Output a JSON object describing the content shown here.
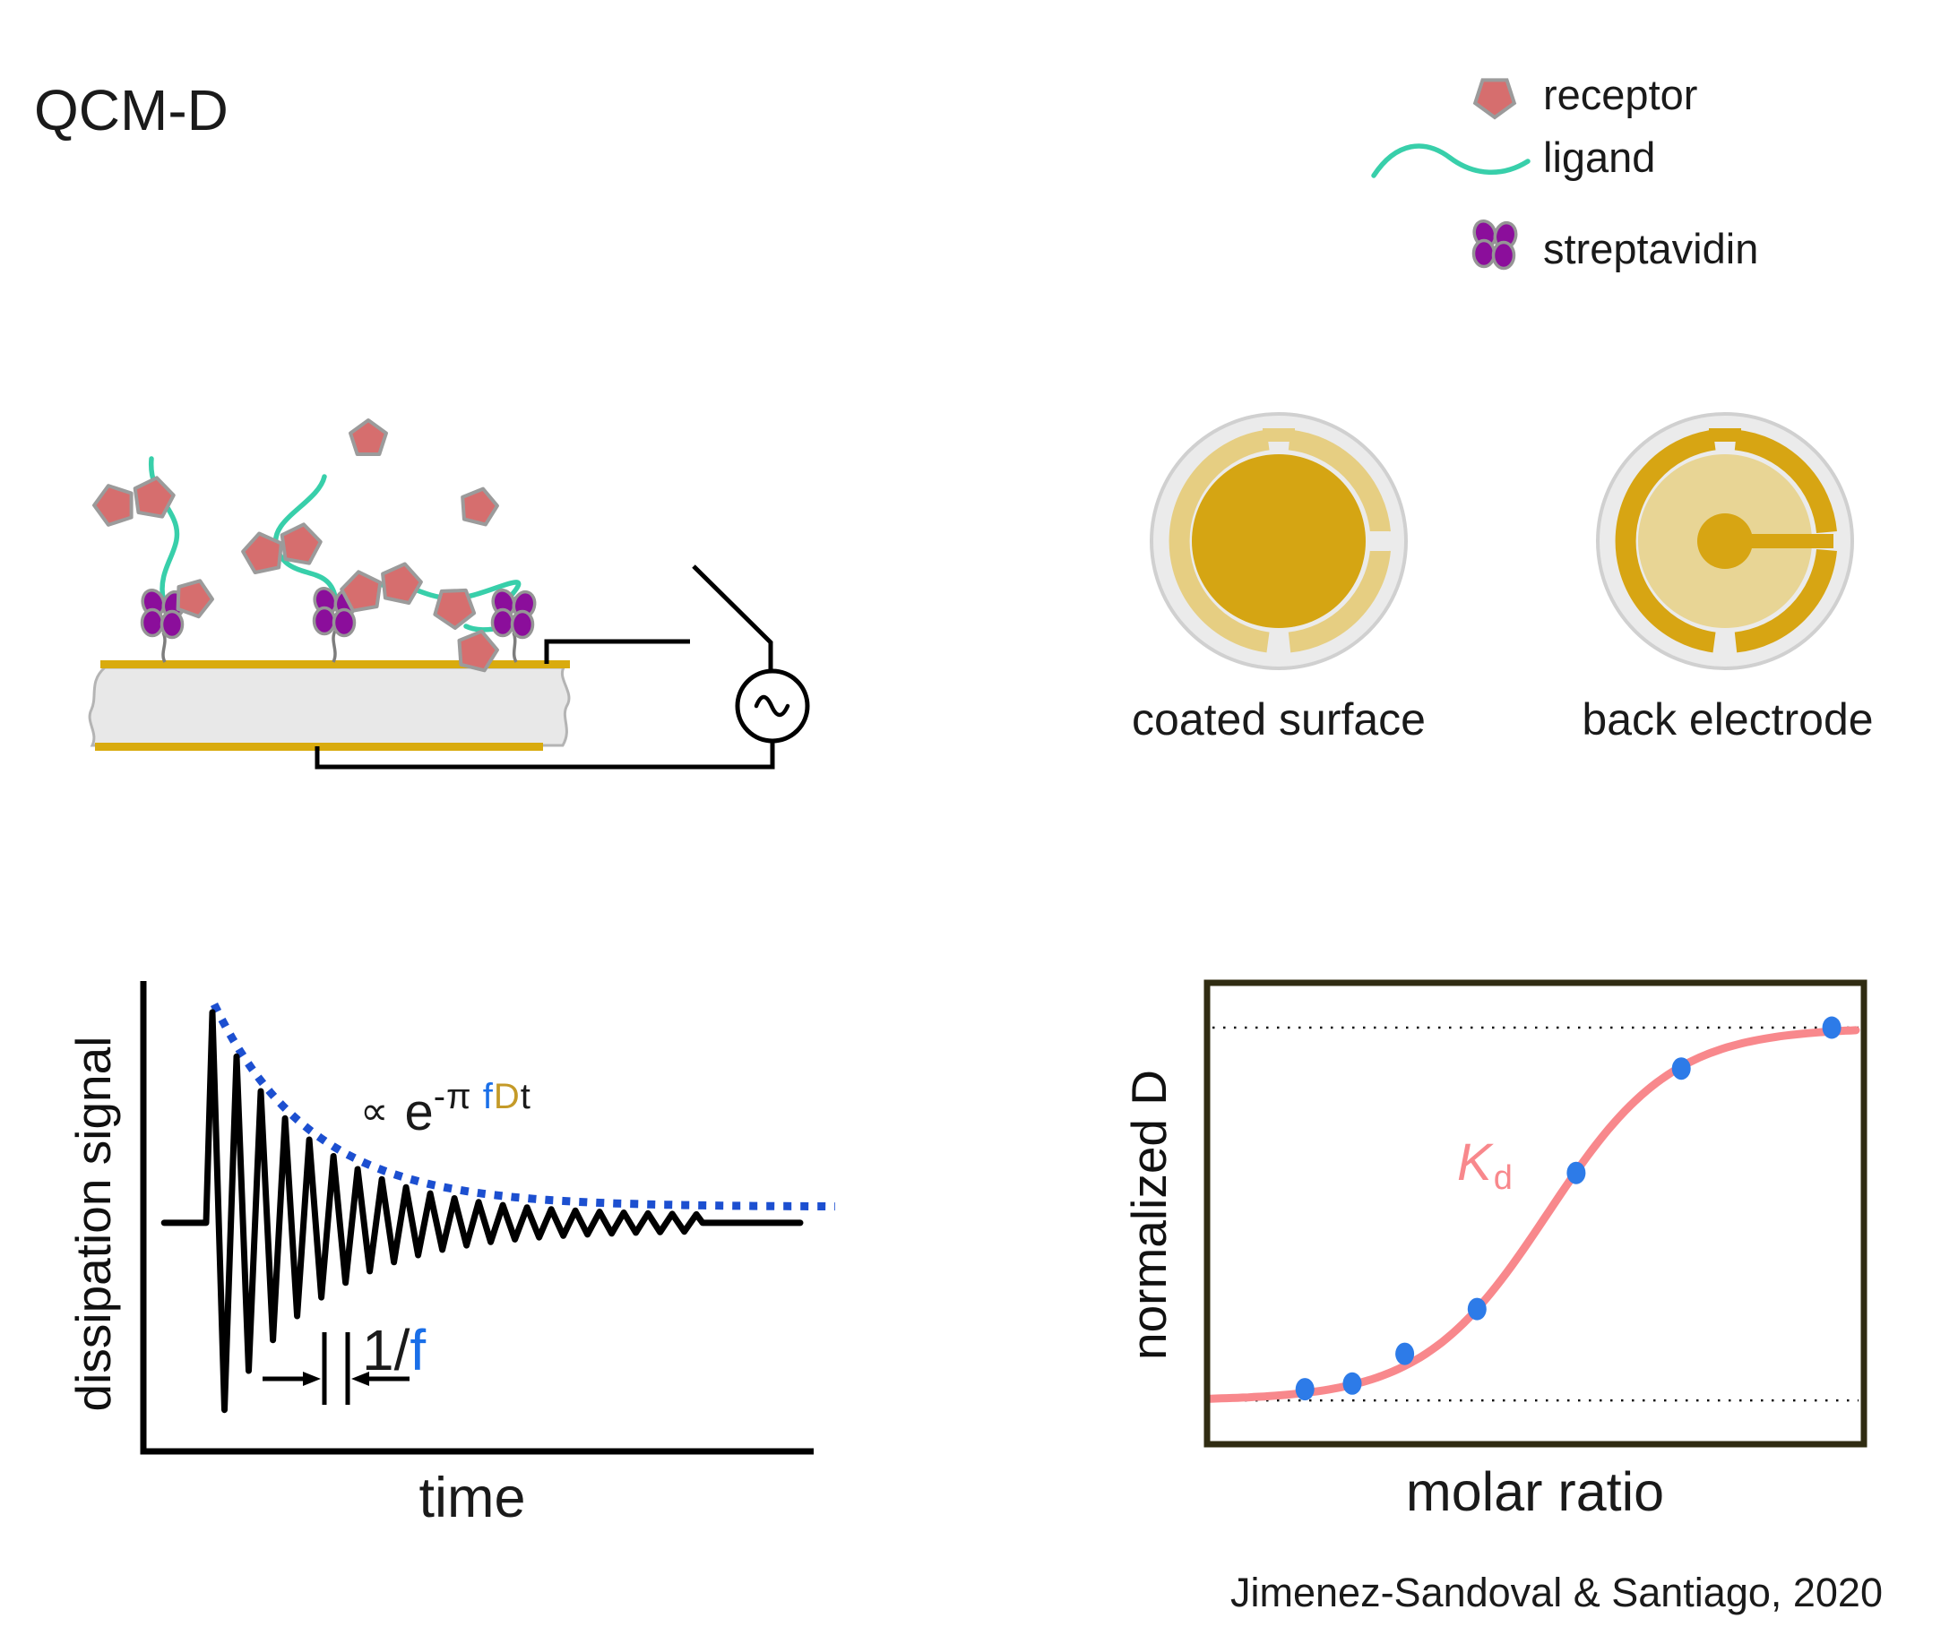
{
  "title": "QCM-D",
  "legend": {
    "items": [
      {
        "label": "receptor",
        "icon": "receptor-pentagon-icon",
        "color": "#d66e6e"
      },
      {
        "label": "ligand",
        "icon": "ligand-wave-icon",
        "color": "#38cfaa"
      },
      {
        "label": "streptavidin",
        "icon": "streptavidin-cluster-icon",
        "color": "#8b0e9b"
      }
    ]
  },
  "sensor": {
    "coated_surface_label": "coated surface",
    "back_electrode_label": "back electrode"
  },
  "citation": "Jimenez-Sandoval & Santiago, 2020",
  "chart_data": [
    {
      "id": "ringdown",
      "type": "line",
      "title": "",
      "xlabel": "time",
      "ylabel": "dissipation signal",
      "description": "Damped ring-down oscillation of the quartz crystal; envelope decays exponentially toward the baseline",
      "annotations": {
        "envelope_formula": {
          "prop": "∝",
          "base": "e",
          "exp_black": "-π",
          "exp_f": "f",
          "exp_D": "D",
          "exp_t": "t"
        },
        "period": {
          "black": "1/",
          "blue": "f"
        }
      },
      "signal": {
        "baseline_y_frac": 0.516,
        "flat_start_x_frac": 0.031,
        "osc_start_x_frac": 0.103,
        "osc_end_x_frac": 0.84,
        "end_x_frac": 0.98,
        "period_x_frac": 0.0361,
        "peak_amplitude_y_frac": 0.446,
        "decay_tau_x_frac": 0.147,
        "tail_amplitude_y_frac": 0.015,
        "envelope_offset_y_frac": 0.019
      },
      "colors": {
        "signal": "#000000",
        "envelope": "#1c4fd0",
        "f_blue": "#1a6fe8",
        "D_gold": "#c49a28"
      }
    },
    {
      "id": "binding",
      "type": "scatter",
      "title": "",
      "xlabel": "molar ratio",
      "ylabel": "normalized D",
      "curve_label_main": "K",
      "curve_label_sub": "d",
      "points": [
        {
          "x_frac": 0.149,
          "norm_D": 0.03
        },
        {
          "x_frac": 0.221,
          "norm_D": 0.045
        },
        {
          "x_frac": 0.301,
          "norm_D": 0.125
        },
        {
          "x_frac": 0.411,
          "norm_D": 0.245
        },
        {
          "x_frac": 0.562,
          "norm_D": 0.61
        },
        {
          "x_frac": 0.722,
          "norm_D": 0.89
        },
        {
          "x_frac": 0.951,
          "norm_D": 1.0
        }
      ],
      "fit_sigmoid": {
        "midpoint_x_frac": 0.518,
        "width_x_frac": 0.095
      },
      "asymptotes": {
        "top_y_frac": 0.097,
        "bottom_y_frac": 0.905
      },
      "grid": false,
      "colors": {
        "curve": "#f8888c",
        "points": "#2d7be8",
        "frame": "#302c12",
        "asymptote": "#111111"
      }
    }
  ]
}
